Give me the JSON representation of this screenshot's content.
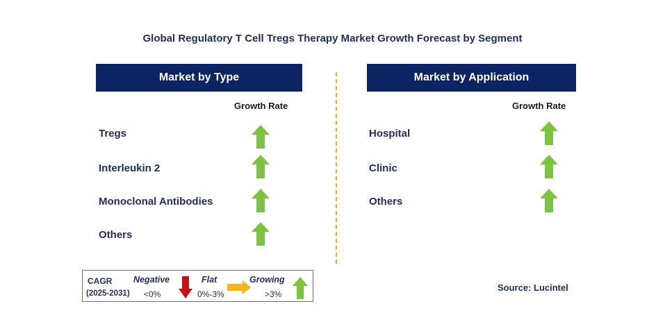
{
  "title": "Global Regulatory T Cell Tregs Therapy Market Growth Forecast by Segment",
  "left_panel": {
    "header": "Market by Type",
    "growth_label": "Growth Rate",
    "items": [
      {
        "label": "Tregs",
        "trend": "growing"
      },
      {
        "label": "Interleukin 2",
        "trend": "growing"
      },
      {
        "label": "Monoclonal Antibodies",
        "trend": "growing"
      },
      {
        "label": "Others",
        "trend": "growing"
      }
    ]
  },
  "right_panel": {
    "header": "Market by Application",
    "growth_label": "Growth Rate",
    "items": [
      {
        "label": "Hospital",
        "trend": "growing"
      },
      {
        "label": "Clinic",
        "trend": "growing"
      },
      {
        "label": "Others",
        "trend": "growing"
      }
    ]
  },
  "legend": {
    "cagr": "CAGR",
    "period": "(2025-2031)",
    "negative": {
      "label": "Negative",
      "range": "<0%"
    },
    "flat": {
      "label": "Flat",
      "range": "0%-3%"
    },
    "growing": {
      "label": "Growing",
      "range": ">3%"
    }
  },
  "source": "Source: Lucintel",
  "colors": {
    "header_bg": "#0c2461",
    "text": "#1f2d5a",
    "growing": "#7dc242",
    "negative": "#c0141b",
    "flat": "#f4b71a",
    "divider": "#f2b21b"
  }
}
